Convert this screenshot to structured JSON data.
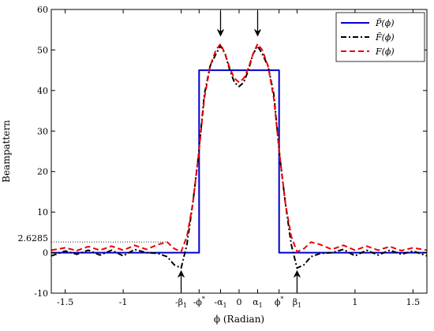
{
  "chart_data": {
    "type": "line",
    "title": "",
    "xlabel": "ϕ (Radian)",
    "ylabel": "Beampattern",
    "xlim": [
      -1.62,
      1.62
    ],
    "ylim": [
      -10,
      60
    ],
    "yticks": [
      -10,
      0,
      10,
      20,
      30,
      40,
      50,
      60
    ],
    "ytick_labels": [
      "-10",
      "0",
      "10",
      "20",
      "30",
      "40",
      "50",
      "60"
    ],
    "extra_ytick": {
      "value": 2.6285,
      "label": "2.6285"
    },
    "xticks": [
      {
        "value": -1.5,
        "label": "-1.5"
      },
      {
        "value": -1.0,
        "label": "-1"
      },
      {
        "value": -0.5,
        "label": "-β",
        "sub": "1"
      },
      {
        "value": -0.345,
        "label": "-ϕ",
        "sup": "*"
      },
      {
        "value": -0.16,
        "label": "-α",
        "sub": "1"
      },
      {
        "value": 0.0,
        "label": "0"
      },
      {
        "value": 0.16,
        "label": "α",
        "sub": "1"
      },
      {
        "value": 0.345,
        "label": "ϕ",
        "sup": "*"
      },
      {
        "value": 0.5,
        "label": "β",
        "sub": "1"
      },
      {
        "value": 1.0,
        "label": "1"
      },
      {
        "value": 1.5,
        "label": "1.5"
      }
    ],
    "legend_position": "top-right",
    "series": [
      {
        "name": "P̃(ϕ)",
        "color": "#0000cc",
        "dash": "solid",
        "x": [
          -1.62,
          -0.345,
          -0.345,
          0.345,
          0.345,
          1.62
        ],
        "y": [
          0,
          0,
          45,
          45,
          0,
          0
        ]
      },
      {
        "name": "F̃(ϕ)",
        "color": "#000000",
        "dash": "dashdot",
        "x": [
          -1.62,
          -1.5,
          -1.4,
          -1.3,
          -1.2,
          -1.1,
          -1.0,
          -0.9,
          -0.8,
          -0.7,
          -0.62,
          -0.56,
          -0.5,
          -0.45,
          -0.4,
          -0.35,
          -0.3,
          -0.25,
          -0.2,
          -0.16,
          -0.12,
          -0.08,
          -0.04,
          0.0,
          0.04,
          0.08,
          0.12,
          0.16,
          0.2,
          0.25,
          0.3,
          0.35,
          0.4,
          0.45,
          0.5,
          0.56,
          0.62,
          0.7,
          0.8,
          0.9,
          1.0,
          1.1,
          1.2,
          1.3,
          1.4,
          1.5,
          1.62
        ],
        "y": [
          -0.8,
          0.4,
          -0.4,
          0.6,
          -0.6,
          0.6,
          -0.8,
          0.8,
          0.0,
          -0.2,
          -1.0,
          -3.0,
          -3.8,
          2.0,
          12.0,
          24.0,
          39.0,
          46.0,
          49.0,
          51.0,
          49.0,
          45.0,
          42.0,
          41.0,
          42.0,
          45.0,
          49.0,
          51.0,
          49.0,
          46.0,
          39.0,
          24.0,
          12.0,
          2.0,
          -3.8,
          -3.0,
          -1.0,
          -0.2,
          0.0,
          0.8,
          -0.8,
          0.6,
          -0.6,
          0.6,
          -0.4,
          0.4,
          -0.8
        ]
      },
      {
        "name": "F(ϕ)",
        "color": "#ee0000",
        "dash": "dashed",
        "x": [
          -1.62,
          -1.5,
          -1.4,
          -1.3,
          -1.2,
          -1.1,
          -1.0,
          -0.9,
          -0.8,
          -0.7,
          -0.62,
          -0.56,
          -0.5,
          -0.45,
          -0.4,
          -0.35,
          -0.3,
          -0.25,
          -0.2,
          -0.16,
          -0.12,
          -0.08,
          -0.04,
          0.0,
          0.04,
          0.08,
          0.12,
          0.16,
          0.2,
          0.25,
          0.3,
          0.35,
          0.4,
          0.45,
          0.5,
          0.56,
          0.62,
          0.7,
          0.8,
          0.9,
          1.0,
          1.1,
          1.2,
          1.3,
          1.4,
          1.5,
          1.62
        ],
        "y": [
          0.6,
          1.2,
          0.5,
          1.5,
          0.6,
          1.6,
          0.6,
          1.8,
          0.8,
          2.0,
          2.6,
          1.0,
          0.2,
          4.0,
          12.0,
          24.0,
          38.0,
          46.0,
          50.0,
          51.5,
          49.0,
          45.5,
          43.0,
          42.0,
          43.0,
          45.5,
          49.0,
          51.5,
          50.0,
          46.0,
          38.0,
          24.0,
          12.0,
          4.0,
          0.2,
          1.0,
          2.6,
          2.0,
          0.8,
          1.8,
          0.6,
          1.6,
          0.6,
          1.5,
          0.5,
          1.2,
          0.6
        ]
      }
    ],
    "arrows": [
      {
        "x": -0.16,
        "direction": "down"
      },
      {
        "x": 0.16,
        "direction": "down"
      },
      {
        "x": -0.5,
        "direction": "up"
      },
      {
        "x": 0.5,
        "direction": "up"
      }
    ]
  }
}
